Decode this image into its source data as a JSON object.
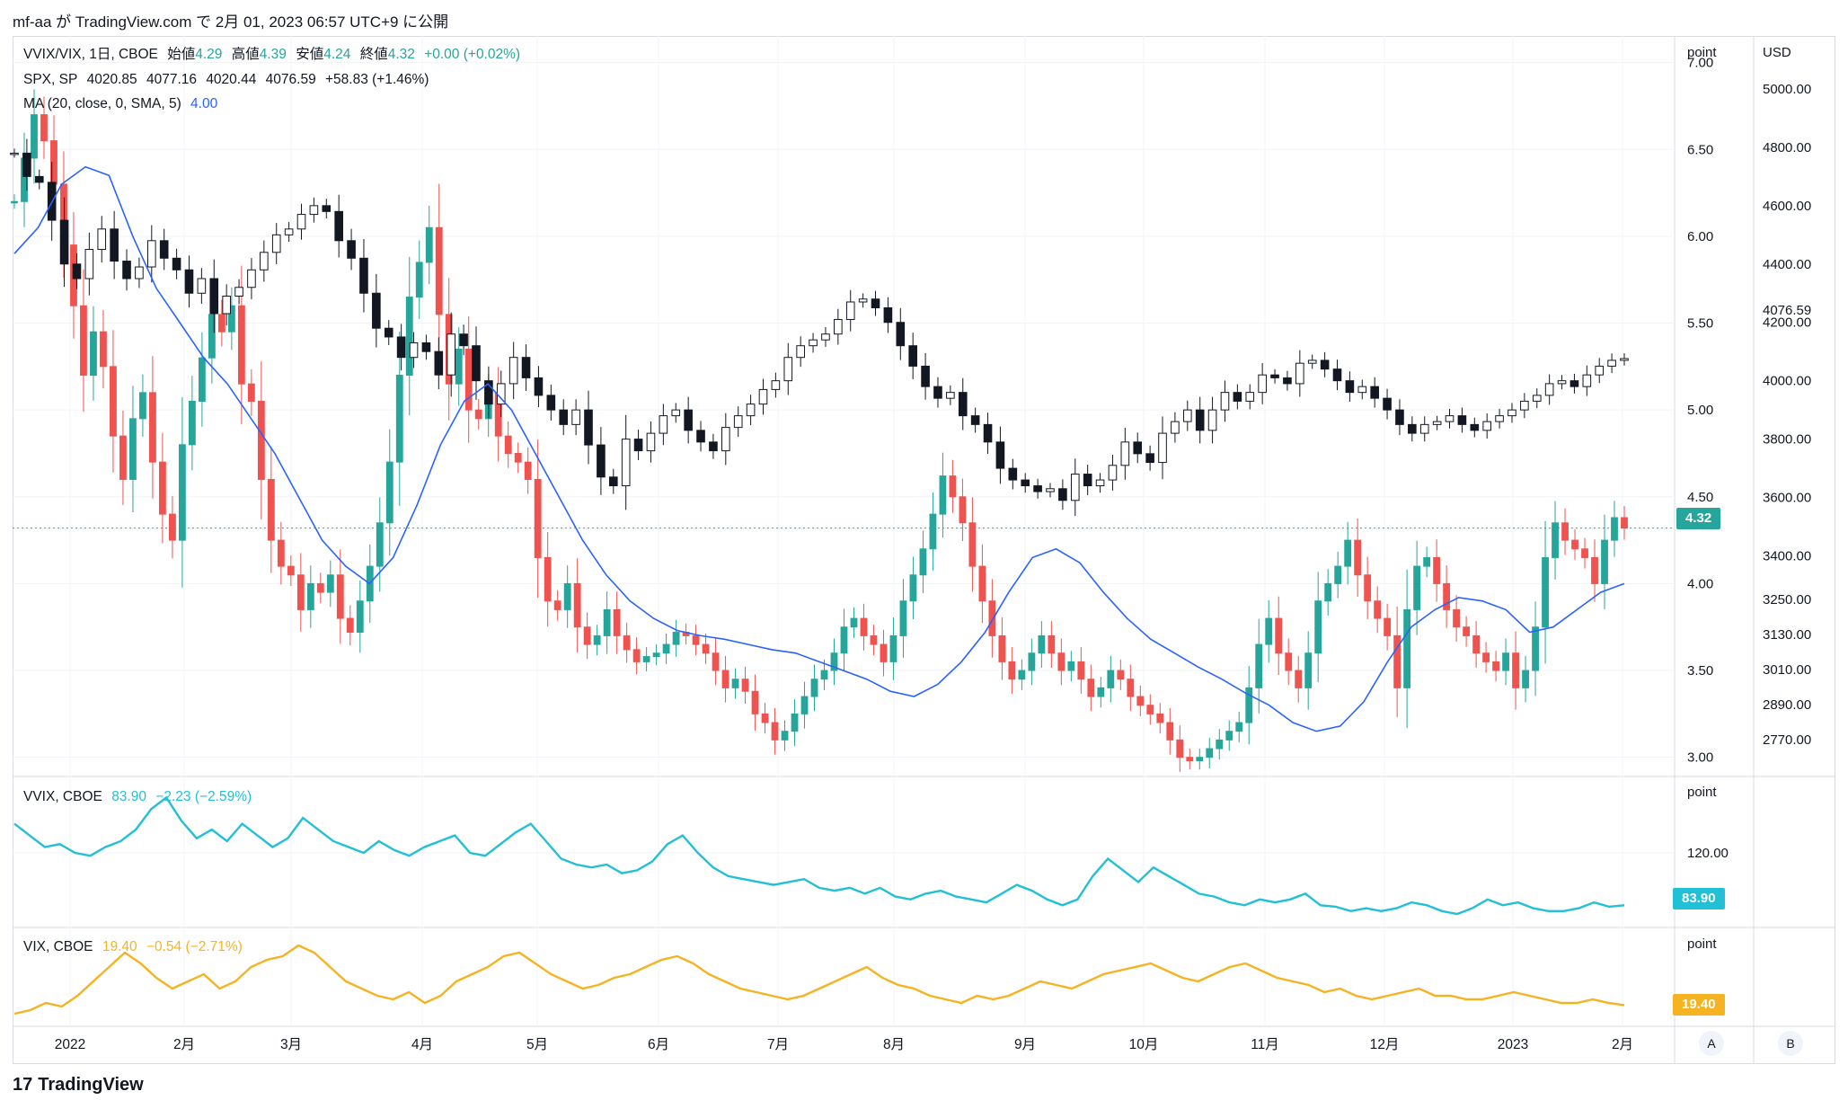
{
  "header": {
    "publisher_line": "mf-aa が TradingView.com で 2月 01, 2023 06:57 UTC+9 に公開"
  },
  "footer": {
    "brand": "TradingView",
    "logo_glyph": "17"
  },
  "colors": {
    "up": "#26a69a",
    "down": "#ef5350",
    "spx": "#131722",
    "ma": "#2962ff",
    "vvix": "#22c0d6",
    "vix": "#f5b322",
    "grid": "#f0f3fa"
  },
  "legends": {
    "main": {
      "symbol": "VVIX/VIX, 1日, CBOE",
      "o_label": "始値",
      "o_val": "4.29",
      "h_label": "高値",
      "h_val": "4.39",
      "l_label": "安値",
      "l_val": "4.24",
      "c_label": "終値",
      "c_val": "4.32",
      "change": "+0.00 (+0.02%)"
    },
    "spx": {
      "symbol": "SPX, SP",
      "o": "4020.85",
      "h": "4077.16",
      "l": "4020.44",
      "c": "4076.59",
      "change": "+58.83 (+1.46%)"
    },
    "ma": {
      "label": "MA (20, close, 0, SMA, 5)",
      "value": "4.00"
    },
    "vvix": {
      "symbol": "VVIX, CBOE",
      "value": "83.90",
      "change": "−2.23 (−2.59%)"
    },
    "vix": {
      "symbol": "VIX, CBOE",
      "value": "19.40",
      "change": "−0.54 (−2.71%)"
    }
  },
  "scales": {
    "main_unit": "point",
    "spx_unit": "USD",
    "main_ticks": [
      "7.00",
      "6.50",
      "6.00",
      "5.50",
      "5.00",
      "4.50",
      "4.00",
      "3.50",
      "3.00"
    ],
    "spx_ticks": [
      "5000.00",
      "4800.00",
      "4600.00",
      "4400.00",
      "4200.00",
      "4000.00",
      "3800.00",
      "3600.00",
      "3400.00",
      "3250.00",
      "3130.00",
      "3010.00",
      "2890.00",
      "2770.00"
    ],
    "vvix_unit": "point",
    "vvix_ticks": [
      "120.00"
    ],
    "vix_unit": "point",
    "last_main": "4.32",
    "last_spx": "4076.59",
    "last_vvix": "83.90",
    "last_vix": "19.40"
  },
  "x_axis": {
    "labels": [
      "2022",
      "2月",
      "3月",
      "4月",
      "5月",
      "6月",
      "7月",
      "8月",
      "9月",
      "10月",
      "11月",
      "12月",
      "2023",
      "2月"
    ]
  },
  "buttons": {
    "a": "A",
    "b": "B"
  },
  "chart_data": [
    {
      "type": "candlestick",
      "name": "VVIX/VIX",
      "x_range": [
        "2022-01-03",
        "2023-01-31"
      ],
      "ylim": [
        2.9,
        7.05
      ],
      "close": [
        6.2,
        6.45,
        6.7,
        6.55,
        6.3,
        5.95,
        5.6,
        5.2,
        5.45,
        5.25,
        4.85,
        4.6,
        4.95,
        5.1,
        4.7,
        4.4,
        4.25,
        4.8,
        5.05,
        5.3,
        5.55,
        5.45,
        5.6,
        5.15,
        5.05,
        4.6,
        4.25,
        4.1,
        4.05,
        3.85,
        4.0,
        3.95,
        4.05,
        3.8,
        3.72,
        3.9,
        4.1,
        4.35,
        4.7,
        5.2,
        5.65,
        5.85,
        6.05,
        5.55,
        5.15,
        5.35,
        5.0,
        4.95,
        5.1,
        4.85,
        4.75,
        4.7,
        4.6,
        4.15,
        3.9,
        3.85,
        4.0,
        3.75,
        3.65,
        3.7,
        3.85,
        3.7,
        3.62,
        3.55,
        3.58,
        3.6,
        3.65,
        3.72,
        3.7,
        3.65,
        3.6,
        3.5,
        3.4,
        3.45,
        3.38,
        3.25,
        3.2,
        3.1,
        3.15,
        3.25,
        3.35,
        3.45,
        3.5,
        3.6,
        3.75,
        3.8,
        3.7,
        3.65,
        3.55,
        3.7,
        3.9,
        4.05,
        4.2,
        4.4,
        4.62,
        4.5,
        4.35,
        4.1,
        3.9,
        3.7,
        3.55,
        3.45,
        3.5,
        3.6,
        3.7,
        3.6,
        3.5,
        3.55,
        3.45,
        3.35,
        3.4,
        3.5,
        3.45,
        3.35,
        3.3,
        3.25,
        3.2,
        3.1,
        3.0,
        2.98,
        3.0,
        3.05,
        3.1,
        3.15,
        3.2,
        3.4,
        3.65,
        3.8,
        3.6,
        3.5,
        3.4,
        3.6,
        3.9,
        4.0,
        4.1,
        4.25,
        4.05,
        3.9,
        3.8,
        3.7,
        3.4,
        3.85,
        4.1,
        4.15,
        4.0,
        3.85,
        3.75,
        3.7,
        3.6,
        3.55,
        3.5,
        3.6,
        3.4,
        3.5,
        3.75,
        4.15,
        4.35,
        4.25,
        4.2,
        4.15,
        4.0,
        4.25,
        4.38,
        4.32
      ]
    },
    {
      "type": "candlestick",
      "name": "SPX",
      "x_range": [
        "2022-01-03",
        "2023-01-31"
      ],
      "ylim": [
        2650,
        5120
      ],
      "close": [
        4780,
        4700,
        4680,
        4550,
        4400,
        4350,
        4450,
        4520,
        4410,
        4350,
        4390,
        4480,
        4420,
        4380,
        4300,
        4350,
        4230,
        4290,
        4320,
        4380,
        4440,
        4500,
        4520,
        4570,
        4600,
        4580,
        4480,
        4420,
        4300,
        4180,
        4150,
        4080,
        4130,
        4100,
        4020,
        4160,
        4120,
        4000,
        3920,
        3990,
        4080,
        4010,
        3950,
        3900,
        3850,
        3900,
        3780,
        3670,
        3640,
        3800,
        3760,
        3820,
        3880,
        3900,
        3830,
        3790,
        3760,
        3840,
        3880,
        3920,
        3970,
        4000,
        4080,
        4120,
        4140,
        4160,
        4210,
        4270,
        4280,
        4250,
        4200,
        4120,
        4050,
        3980,
        3940,
        3960,
        3880,
        3850,
        3790,
        3700,
        3660,
        3640,
        3620,
        3630,
        3590,
        3680,
        3640,
        3660,
        3710,
        3790,
        3750,
        3720,
        3820,
        3860,
        3900,
        3830,
        3900,
        3960,
        3930,
        3960,
        4020,
        4010,
        3990,
        4060,
        4070,
        4040,
        4000,
        3960,
        3980,
        3940,
        3900,
        3850,
        3820,
        3850,
        3860,
        3880,
        3850,
        3830,
        3860,
        3880,
        3900,
        3930,
        3950,
        3990,
        4000,
        3980,
        4020,
        4050,
        4070,
        4076
      ]
    },
    {
      "type": "line",
      "name": "MA (20, close, 0, SMA, 5)",
      "x_range": [
        "2022-01-03",
        "2023-01-31"
      ],
      "ylim": [
        2.9,
        7.05
      ],
      "values": [
        5.9,
        6.05,
        6.3,
        6.4,
        6.35,
        6.0,
        5.7,
        5.5,
        5.3,
        5.15,
        4.95,
        4.75,
        4.5,
        4.25,
        4.1,
        4.0,
        4.15,
        4.45,
        4.8,
        5.05,
        5.15,
        5.0,
        4.75,
        4.5,
        4.25,
        4.05,
        3.9,
        3.8,
        3.73,
        3.7,
        3.68,
        3.65,
        3.62,
        3.6,
        3.55,
        3.5,
        3.45,
        3.38,
        3.35,
        3.42,
        3.55,
        3.72,
        3.95,
        4.15,
        4.2,
        4.12,
        3.95,
        3.8,
        3.68,
        3.6,
        3.52,
        3.45,
        3.37,
        3.3,
        3.2,
        3.15,
        3.18,
        3.32,
        3.55,
        3.75,
        3.85,
        3.92,
        3.9,
        3.85,
        3.72,
        3.75,
        3.85,
        3.95,
        4.0
      ]
    },
    {
      "type": "line",
      "name": "VVIX",
      "x_range": [
        "2022-01-03",
        "2023-01-31"
      ],
      "values": [
        140,
        132,
        124,
        126,
        120,
        118,
        124,
        128,
        136,
        150,
        158,
        142,
        130,
        136,
        128,
        140,
        132,
        124,
        130,
        144,
        136,
        128,
        124,
        120,
        128,
        122,
        118,
        124,
        128,
        132,
        120,
        118,
        126,
        134,
        140,
        128,
        116,
        112,
        110,
        112,
        106,
        108,
        114,
        126,
        132,
        120,
        110,
        104,
        102,
        100,
        98,
        100,
        102,
        96,
        94,
        96,
        92,
        96,
        90,
        88,
        92,
        94,
        90,
        88,
        86,
        92,
        98,
        94,
        88,
        84,
        88,
        104,
        116,
        108,
        100,
        110,
        104,
        98,
        92,
        90,
        86,
        84,
        88,
        86,
        88,
        92,
        84,
        83,
        80,
        82,
        80,
        82,
        86,
        84,
        80,
        78,
        82,
        88,
        84,
        86,
        82,
        80,
        80,
        82,
        86,
        83,
        84
      ]
    },
    {
      "type": "line",
      "name": "VIX",
      "x_range": [
        "2022-01-03",
        "2023-01-31"
      ],
      "values": [
        17,
        18,
        20,
        19,
        22,
        26,
        30,
        34,
        31,
        27,
        24,
        26,
        28,
        24,
        26,
        30,
        32,
        33,
        36,
        34,
        30,
        26,
        24,
        22,
        21,
        23,
        20,
        22,
        26,
        28,
        30,
        33,
        34,
        31,
        28,
        26,
        24,
        25,
        27,
        28,
        30,
        32,
        33,
        31,
        28,
        26,
        24,
        23,
        22,
        21,
        22,
        24,
        26,
        28,
        30,
        27,
        25,
        24,
        22,
        21,
        20,
        22,
        21,
        22,
        24,
        26,
        25,
        24,
        26,
        28,
        29,
        30,
        31,
        29,
        27,
        26,
        28,
        30,
        31,
        29,
        27,
        26,
        25,
        23,
        24,
        22,
        21,
        22,
        23,
        24,
        22,
        22,
        21,
        21,
        22,
        23,
        22,
        21,
        20,
        20,
        21,
        20,
        19.4
      ]
    }
  ]
}
